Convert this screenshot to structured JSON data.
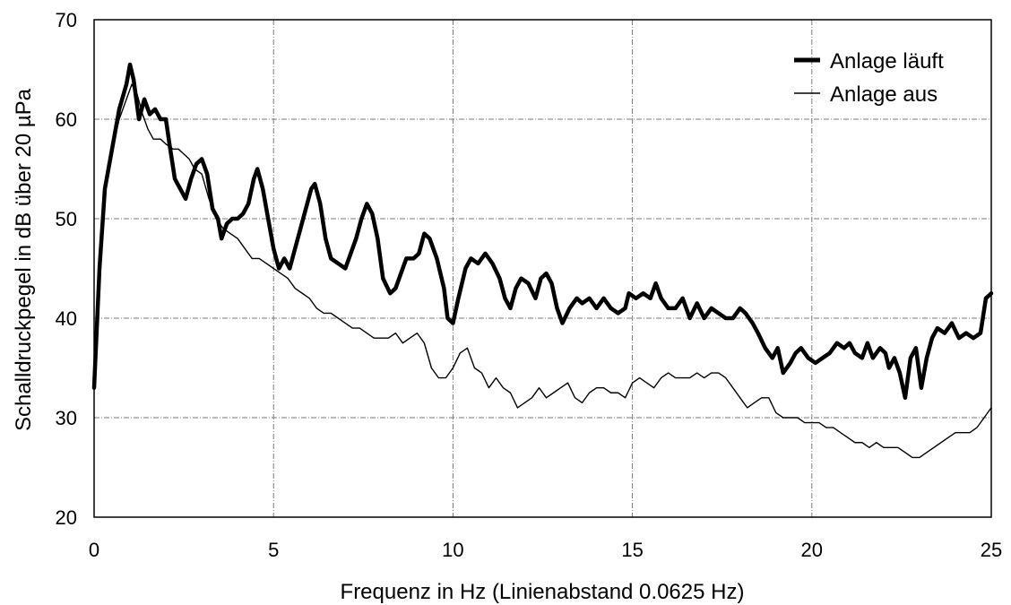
{
  "chart_data": {
    "type": "line",
    "title": "",
    "xlabel": "Frequenz in Hz (Linienabstand 0.0625 Hz)",
    "ylabel": "Schalldruckpegel in dB über 20 µPa",
    "xlim": [
      0,
      25
    ],
    "ylim": [
      20,
      70
    ],
    "x_ticks": [
      "0",
      "5",
      "10",
      "15",
      "20",
      "25"
    ],
    "y_ticks": [
      "20",
      "30",
      "40",
      "50",
      "60",
      "70"
    ],
    "grid": true,
    "legend_position": "top-right",
    "series": [
      {
        "name": "Anlage läuft",
        "color": "#000000",
        "style": "thick",
        "points": [
          [
            0,
            33
          ],
          [
            0.15,
            45
          ],
          [
            0.3,
            53
          ],
          [
            0.5,
            57
          ],
          [
            0.7,
            61
          ],
          [
            0.9,
            63.5
          ],
          [
            1.0,
            65.5
          ],
          [
            1.1,
            64
          ],
          [
            1.25,
            60
          ],
          [
            1.4,
            62
          ],
          [
            1.55,
            60.5
          ],
          [
            1.7,
            61
          ],
          [
            1.85,
            60
          ],
          [
            2.0,
            60
          ],
          [
            2.1,
            57.5
          ],
          [
            2.25,
            54
          ],
          [
            2.4,
            53
          ],
          [
            2.55,
            52
          ],
          [
            2.7,
            54
          ],
          [
            2.85,
            55.5
          ],
          [
            3.0,
            56
          ],
          [
            3.15,
            54.5
          ],
          [
            3.3,
            51
          ],
          [
            3.45,
            50
          ],
          [
            3.55,
            48
          ],
          [
            3.7,
            49.5
          ],
          [
            3.85,
            50
          ],
          [
            4.0,
            50
          ],
          [
            4.15,
            50.5
          ],
          [
            4.3,
            51.5
          ],
          [
            4.45,
            54
          ],
          [
            4.55,
            55
          ],
          [
            4.7,
            53
          ],
          [
            4.85,
            50
          ],
          [
            5.0,
            47
          ],
          [
            5.15,
            45
          ],
          [
            5.3,
            46
          ],
          [
            5.45,
            45
          ],
          [
            5.6,
            47
          ],
          [
            5.75,
            49
          ],
          [
            5.9,
            51
          ],
          [
            6.05,
            53
          ],
          [
            6.15,
            53.5
          ],
          [
            6.3,
            51.5
          ],
          [
            6.45,
            48
          ],
          [
            6.6,
            46
          ],
          [
            6.8,
            45.5
          ],
          [
            7.0,
            45
          ],
          [
            7.15,
            46.5
          ],
          [
            7.3,
            48
          ],
          [
            7.45,
            50
          ],
          [
            7.6,
            51.5
          ],
          [
            7.75,
            50.5
          ],
          [
            7.9,
            48
          ],
          [
            8.05,
            44
          ],
          [
            8.25,
            42.5
          ],
          [
            8.4,
            43
          ],
          [
            8.55,
            44.5
          ],
          [
            8.7,
            46
          ],
          [
            8.9,
            46
          ],
          [
            9.05,
            46.5
          ],
          [
            9.2,
            48.5
          ],
          [
            9.35,
            48
          ],
          [
            9.55,
            46
          ],
          [
            9.75,
            43
          ],
          [
            9.85,
            40
          ],
          [
            10.0,
            39.5
          ],
          [
            10.15,
            42
          ],
          [
            10.35,
            45
          ],
          [
            10.5,
            46
          ],
          [
            10.7,
            45.5
          ],
          [
            10.9,
            46.5
          ],
          [
            11.1,
            45.5
          ],
          [
            11.3,
            44
          ],
          [
            11.45,
            42
          ],
          [
            11.6,
            41
          ],
          [
            11.75,
            43
          ],
          [
            11.9,
            44
          ],
          [
            12.1,
            43.5
          ],
          [
            12.3,
            42
          ],
          [
            12.45,
            44
          ],
          [
            12.6,
            44.5
          ],
          [
            12.75,
            43.5
          ],
          [
            12.9,
            41
          ],
          [
            13.05,
            39.5
          ],
          [
            13.25,
            41
          ],
          [
            13.45,
            42
          ],
          [
            13.6,
            41.5
          ],
          [
            13.8,
            42
          ],
          [
            14.0,
            41
          ],
          [
            14.2,
            42
          ],
          [
            14.4,
            41
          ],
          [
            14.6,
            40.5
          ],
          [
            14.8,
            41
          ],
          [
            14.9,
            42.5
          ],
          [
            15.1,
            42
          ],
          [
            15.3,
            42.5
          ],
          [
            15.5,
            42
          ],
          [
            15.65,
            43.5
          ],
          [
            15.8,
            42
          ],
          [
            16.0,
            41
          ],
          [
            16.2,
            41
          ],
          [
            16.4,
            42
          ],
          [
            16.6,
            40
          ],
          [
            16.8,
            41.5
          ],
          [
            17.0,
            40
          ],
          [
            17.2,
            41
          ],
          [
            17.4,
            40.5
          ],
          [
            17.6,
            40
          ],
          [
            17.8,
            40
          ],
          [
            18.0,
            41
          ],
          [
            18.15,
            40.5
          ],
          [
            18.35,
            39.5
          ],
          [
            18.5,
            38.5
          ],
          [
            18.7,
            37
          ],
          [
            18.9,
            36
          ],
          [
            19.05,
            37
          ],
          [
            19.2,
            34.5
          ],
          [
            19.4,
            35.5
          ],
          [
            19.55,
            36.5
          ],
          [
            19.7,
            37
          ],
          [
            19.9,
            36
          ],
          [
            20.1,
            35.5
          ],
          [
            20.3,
            36
          ],
          [
            20.5,
            36.5
          ],
          [
            20.7,
            37.5
          ],
          [
            20.9,
            37
          ],
          [
            21.05,
            37.5
          ],
          [
            21.2,
            36.5
          ],
          [
            21.4,
            36
          ],
          [
            21.55,
            37.5
          ],
          [
            21.7,
            36
          ],
          [
            21.9,
            37
          ],
          [
            22.05,
            36.5
          ],
          [
            22.15,
            35
          ],
          [
            22.3,
            36
          ],
          [
            22.45,
            34.5
          ],
          [
            22.6,
            32
          ],
          [
            22.75,
            36
          ],
          [
            22.9,
            37
          ],
          [
            23.05,
            33
          ],
          [
            23.2,
            36
          ],
          [
            23.35,
            38
          ],
          [
            23.5,
            39
          ],
          [
            23.7,
            38.5
          ],
          [
            23.9,
            39.5
          ],
          [
            24.1,
            38
          ],
          [
            24.3,
            38.5
          ],
          [
            24.5,
            38
          ],
          [
            24.7,
            38.5
          ],
          [
            24.85,
            42
          ],
          [
            25.0,
            42.5
          ]
        ]
      },
      {
        "name": "Anlage aus",
        "color": "#000000",
        "style": "thin",
        "points": [
          [
            0,
            33
          ],
          [
            0.15,
            46
          ],
          [
            0.3,
            53
          ],
          [
            0.5,
            57
          ],
          [
            0.7,
            60
          ],
          [
            0.9,
            62
          ],
          [
            1.05,
            63.5
          ],
          [
            1.2,
            62.5
          ],
          [
            1.35,
            60.5
          ],
          [
            1.5,
            59
          ],
          [
            1.65,
            58
          ],
          [
            1.85,
            58
          ],
          [
            2.0,
            57.5
          ],
          [
            2.2,
            57
          ],
          [
            2.35,
            57
          ],
          [
            2.5,
            56.5
          ],
          [
            2.65,
            56
          ],
          [
            2.8,
            55
          ],
          [
            3.0,
            54.5
          ],
          [
            3.2,
            52
          ],
          [
            3.4,
            50
          ],
          [
            3.6,
            49
          ],
          [
            3.8,
            48.5
          ],
          [
            4.0,
            48
          ],
          [
            4.2,
            47
          ],
          [
            4.4,
            46
          ],
          [
            4.6,
            46
          ],
          [
            4.8,
            45.5
          ],
          [
            5.0,
            45
          ],
          [
            5.2,
            44.5
          ],
          [
            5.4,
            44
          ],
          [
            5.6,
            43
          ],
          [
            5.8,
            42.5
          ],
          [
            6.0,
            42
          ],
          [
            6.2,
            41
          ],
          [
            6.4,
            40.5
          ],
          [
            6.6,
            40.5
          ],
          [
            6.8,
            40
          ],
          [
            7.0,
            39.5
          ],
          [
            7.2,
            39
          ],
          [
            7.4,
            39
          ],
          [
            7.6,
            38.5
          ],
          [
            7.8,
            38
          ],
          [
            8.0,
            38
          ],
          [
            8.2,
            38
          ],
          [
            8.4,
            38.5
          ],
          [
            8.6,
            37.5
          ],
          [
            8.8,
            38
          ],
          [
            9.0,
            38.5
          ],
          [
            9.2,
            37.5
          ],
          [
            9.4,
            35
          ],
          [
            9.6,
            34
          ],
          [
            9.8,
            34
          ],
          [
            10.0,
            35
          ],
          [
            10.2,
            36.5
          ],
          [
            10.4,
            37
          ],
          [
            10.6,
            35
          ],
          [
            10.8,
            34.5
          ],
          [
            11.0,
            33
          ],
          [
            11.2,
            34
          ],
          [
            11.4,
            33
          ],
          [
            11.6,
            32.5
          ],
          [
            11.8,
            31
          ],
          [
            12.0,
            31.5
          ],
          [
            12.2,
            32
          ],
          [
            12.4,
            33
          ],
          [
            12.6,
            32
          ],
          [
            12.8,
            32.5
          ],
          [
            13.0,
            33
          ],
          [
            13.2,
            33.5
          ],
          [
            13.4,
            32
          ],
          [
            13.6,
            31.5
          ],
          [
            13.8,
            32.5
          ],
          [
            14.0,
            33
          ],
          [
            14.2,
            33
          ],
          [
            14.4,
            32.5
          ],
          [
            14.6,
            32.5
          ],
          [
            14.8,
            32
          ],
          [
            15.0,
            33.5
          ],
          [
            15.2,
            34
          ],
          [
            15.4,
            33.5
          ],
          [
            15.6,
            33
          ],
          [
            15.8,
            34
          ],
          [
            16.0,
            34.5
          ],
          [
            16.2,
            34
          ],
          [
            16.4,
            34
          ],
          [
            16.6,
            34
          ],
          [
            16.8,
            34.5
          ],
          [
            17.0,
            34
          ],
          [
            17.2,
            34.5
          ],
          [
            17.4,
            34.5
          ],
          [
            17.6,
            34
          ],
          [
            17.8,
            33
          ],
          [
            18.0,
            32
          ],
          [
            18.2,
            31
          ],
          [
            18.4,
            31.5
          ],
          [
            18.6,
            32
          ],
          [
            18.8,
            32
          ],
          [
            19.0,
            30.5
          ],
          [
            19.2,
            30
          ],
          [
            19.4,
            30
          ],
          [
            19.6,
            30
          ],
          [
            19.8,
            29.5
          ],
          [
            20.0,
            29.5
          ],
          [
            20.2,
            29.5
          ],
          [
            20.4,
            29
          ],
          [
            20.6,
            29
          ],
          [
            20.8,
            28.5
          ],
          [
            21.0,
            28
          ],
          [
            21.2,
            27.5
          ],
          [
            21.4,
            27.5
          ],
          [
            21.6,
            27
          ],
          [
            21.8,
            27.5
          ],
          [
            22.0,
            27
          ],
          [
            22.2,
            27
          ],
          [
            22.4,
            27
          ],
          [
            22.6,
            26.5
          ],
          [
            22.8,
            26
          ],
          [
            23.0,
            26
          ],
          [
            23.2,
            26.5
          ],
          [
            23.4,
            27
          ],
          [
            23.6,
            27.5
          ],
          [
            23.8,
            28
          ],
          [
            24.0,
            28.5
          ],
          [
            24.2,
            28.5
          ],
          [
            24.4,
            28.5
          ],
          [
            24.6,
            29
          ],
          [
            24.8,
            30
          ],
          [
            25.0,
            31
          ]
        ]
      }
    ]
  }
}
